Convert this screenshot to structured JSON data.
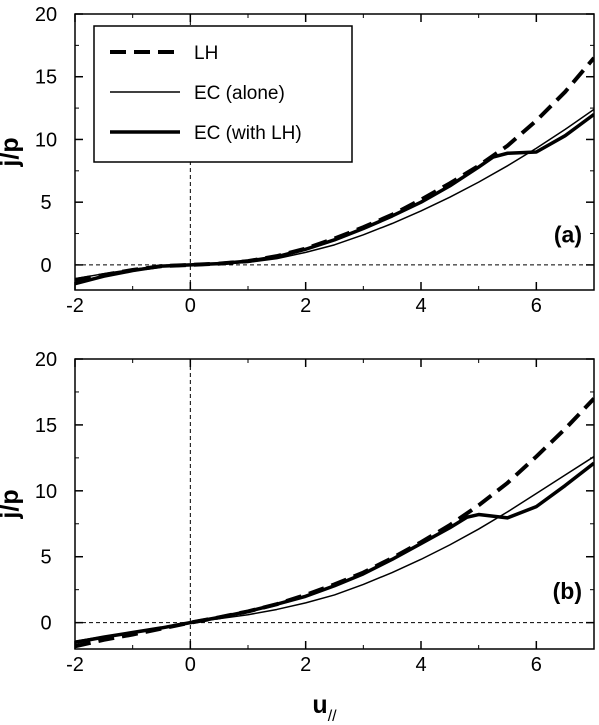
{
  "chart_data": [
    {
      "type": "line",
      "panel_label": "(a)",
      "xlabel": "",
      "ylabel": "j/p",
      "xlim": [
        -2,
        7
      ],
      "ylim": [
        -2,
        20
      ],
      "xticks": [
        -2,
        0,
        2,
        4,
        6
      ],
      "yticks": [
        0,
        5,
        10,
        15,
        20
      ],
      "x_tick_labels": [
        "-2",
        "0",
        "2",
        "4",
        "6"
      ],
      "y_tick_labels": [
        "0",
        "5",
        "10",
        "15",
        "20"
      ],
      "grid": false,
      "reference_lines": {
        "x": 0,
        "y": 0
      },
      "legend": {
        "position": "top-left",
        "entries": [
          "LH",
          "EC (alone)",
          "EC (with LH)"
        ]
      },
      "series": [
        {
          "name": "LH",
          "style": "dashed",
          "x": [
            -2,
            -1.5,
            -1,
            -0.5,
            0,
            0.5,
            1,
            1.5,
            2,
            2.5,
            3,
            3.5,
            4,
            4.5,
            5,
            5.5,
            6,
            6.5,
            7
          ],
          "y": [
            -1.2,
            -0.8,
            -0.4,
            -0.1,
            0,
            0.1,
            0.3,
            0.7,
            1.3,
            2.1,
            3.0,
            4.0,
            5.2,
            6.5,
            7.9,
            9.5,
            11.5,
            13.8,
            16.5
          ]
        },
        {
          "name": "EC (alone)",
          "style": "thin",
          "x": [
            -2,
            -1.5,
            -1,
            -0.5,
            0,
            0.5,
            1,
            1.5,
            2,
            2.5,
            3,
            3.5,
            4,
            4.5,
            5,
            5.5,
            6,
            6.5,
            7
          ],
          "y": [
            -1.1,
            -0.7,
            -0.35,
            -0.1,
            0,
            0.05,
            0.2,
            0.5,
            1.0,
            1.6,
            2.4,
            3.3,
            4.3,
            5.4,
            6.6,
            7.9,
            9.3,
            10.8,
            12.4
          ]
        },
        {
          "name": "EC (with LH)",
          "style": "thick",
          "x": [
            -2,
            -1.5,
            -1,
            -0.5,
            0,
            0.5,
            1,
            1.5,
            2,
            2.5,
            3,
            3.5,
            4,
            4.5,
            5,
            5.25,
            5.5,
            6,
            6.5,
            7
          ],
          "y": [
            -1.5,
            -0.9,
            -0.45,
            -0.1,
            0,
            0.1,
            0.3,
            0.65,
            1.25,
            2.0,
            2.9,
            3.9,
            5.0,
            6.3,
            7.8,
            8.6,
            8.9,
            9.0,
            10.3,
            12.0
          ]
        }
      ]
    },
    {
      "type": "line",
      "panel_label": "(b)",
      "xlabel": "u//",
      "ylabel": "j/p",
      "xlim": [
        -2,
        7
      ],
      "ylim": [
        -2,
        20
      ],
      "xticks": [
        -2,
        0,
        2,
        4,
        6
      ],
      "yticks": [
        0,
        5,
        10,
        15,
        20
      ],
      "x_tick_labels": [
        "-2",
        "0",
        "2",
        "4",
        "6"
      ],
      "y_tick_labels": [
        "0",
        "5",
        "10",
        "15",
        "20"
      ],
      "grid": false,
      "reference_lines": {
        "x": 0,
        "y": 0
      },
      "series": [
        {
          "name": "LH",
          "style": "dashed",
          "x": [
            -2,
            -1.5,
            -1,
            -0.5,
            0,
            0.5,
            1,
            1.5,
            2,
            2.5,
            3,
            3.5,
            4,
            4.5,
            5,
            5.5,
            6,
            6.5,
            7
          ],
          "y": [
            -1.8,
            -1.3,
            -0.9,
            -0.45,
            0,
            0.4,
            0.85,
            1.4,
            2.1,
            2.9,
            3.8,
            4.9,
            6.1,
            7.4,
            8.9,
            10.6,
            12.6,
            14.7,
            17.0
          ]
        },
        {
          "name": "EC (alone)",
          "style": "thin",
          "x": [
            -2,
            -1.5,
            -1,
            -0.5,
            0,
            0.5,
            1,
            1.5,
            2,
            2.5,
            3,
            3.5,
            4,
            4.5,
            5,
            5.5,
            6,
            6.5,
            7
          ],
          "y": [
            -1.4,
            -1.05,
            -0.7,
            -0.35,
            0,
            0.3,
            0.6,
            1.0,
            1.5,
            2.1,
            2.9,
            3.8,
            4.8,
            5.9,
            7.1,
            8.4,
            9.8,
            11.2,
            12.6
          ]
        },
        {
          "name": "EC (with LH)",
          "style": "thick",
          "x": [
            -2,
            -1.5,
            -1,
            -0.5,
            0,
            0.5,
            1,
            1.5,
            2,
            2.5,
            3,
            3.5,
            4,
            4.5,
            4.8,
            5.0,
            5.5,
            6,
            6.5,
            7
          ],
          "y": [
            -1.5,
            -1.1,
            -0.75,
            -0.4,
            0,
            0.4,
            0.85,
            1.4,
            2.0,
            2.8,
            3.7,
            4.8,
            6.0,
            7.2,
            8.0,
            8.2,
            7.95,
            8.8,
            10.4,
            12.1
          ]
        }
      ]
    }
  ]
}
